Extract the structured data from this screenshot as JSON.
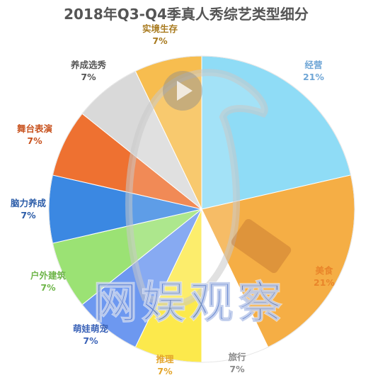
{
  "chart_data": {
    "type": "pie",
    "title": "2018年Q3-Q4季真人秀综艺类型细分",
    "slices": [
      {
        "label": "经营",
        "value": 21,
        "percent_text": "21%",
        "color": "#8fdcf6",
        "label_color": "#6fa6d6"
      },
      {
        "label": "美食",
        "value": 21,
        "percent_text": "21%",
        "color": "#f5ae45",
        "label_color": "#e9852a"
      },
      {
        "label": "旅行",
        "value": 7,
        "percent_text": "7%",
        "color": "#ffffff",
        "label_color": "#8a8a8a"
      },
      {
        "label": "推理",
        "value": 7,
        "percent_text": "7%",
        "color": "#fce94c",
        "label_color": "#e3a52a"
      },
      {
        "label": "萌娃萌宠",
        "value": 7,
        "percent_text": "7%",
        "color": "#6d98f0",
        "label_color": "#3b63b8"
      },
      {
        "label": "户外建筑",
        "value": 7,
        "percent_text": "7%",
        "color": "#9be274",
        "label_color": "#6fb64a"
      },
      {
        "label": "脑力养成",
        "value": 7,
        "percent_text": "7%",
        "color": "#3b88e2",
        "label_color": "#2b5ca8"
      },
      {
        "label": "舞台表演",
        "value": 7,
        "percent_text": "7%",
        "color": "#ee7131",
        "label_color": "#c8521e"
      },
      {
        "label": "养成选秀",
        "value": 7,
        "percent_text": "7%",
        "color": "#d9d9d9",
        "label_color": "#555555"
      },
      {
        "label": "实境生存",
        "value": 7,
        "percent_text": "7%",
        "color": "#f7bd4f",
        "label_color": "#a87a1e"
      }
    ],
    "start": "12 o'clock",
    "direction": "clockwise",
    "legend": "none",
    "labels": "outside"
  },
  "watermark": {
    "text": "网娱观察",
    "color": "#4a72c8"
  }
}
